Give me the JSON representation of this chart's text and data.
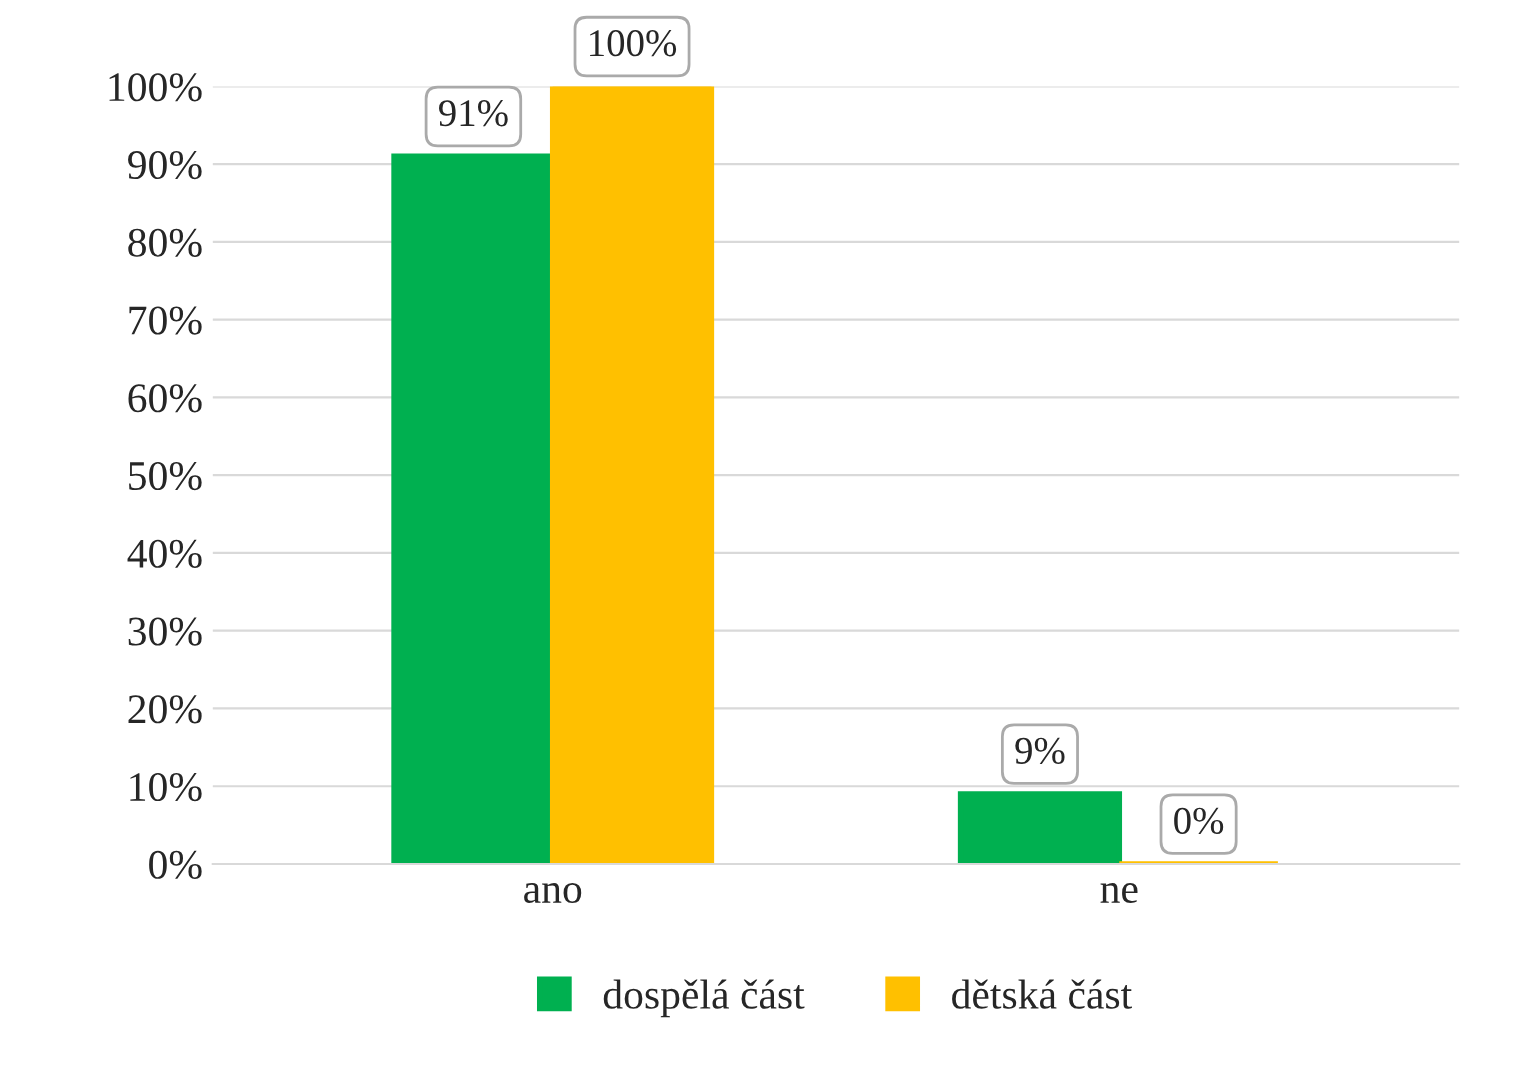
{
  "chart_data": {
    "type": "bar",
    "categories": [
      "ano",
      "ne"
    ],
    "series": [
      {
        "name": "dospělá část",
        "color": "#00b050",
        "values": [
          91,
          9
        ],
        "value_labels": [
          "91%",
          "9%"
        ]
      },
      {
        "name": "dětská část",
        "color": "#ffc000",
        "values": [
          100,
          0
        ],
        "value_labels": [
          "100%",
          "0%"
        ]
      }
    ],
    "ylim": [
      0,
      100
    ],
    "yticks": [
      {
        "value": 0,
        "label": "0%"
      },
      {
        "value": 10,
        "label": "10%"
      },
      {
        "value": 20,
        "label": "20%"
      },
      {
        "value": 30,
        "label": "30%"
      },
      {
        "value": 40,
        "label": "40%"
      },
      {
        "value": 50,
        "label": "50%"
      },
      {
        "value": 60,
        "label": "60%"
      },
      {
        "value": 70,
        "label": "70%"
      },
      {
        "value": 80,
        "label": "80%"
      },
      {
        "value": 90,
        "label": "90%"
      },
      {
        "value": 100,
        "label": "100%"
      }
    ],
    "grid": "y",
    "legend": "bottom"
  }
}
